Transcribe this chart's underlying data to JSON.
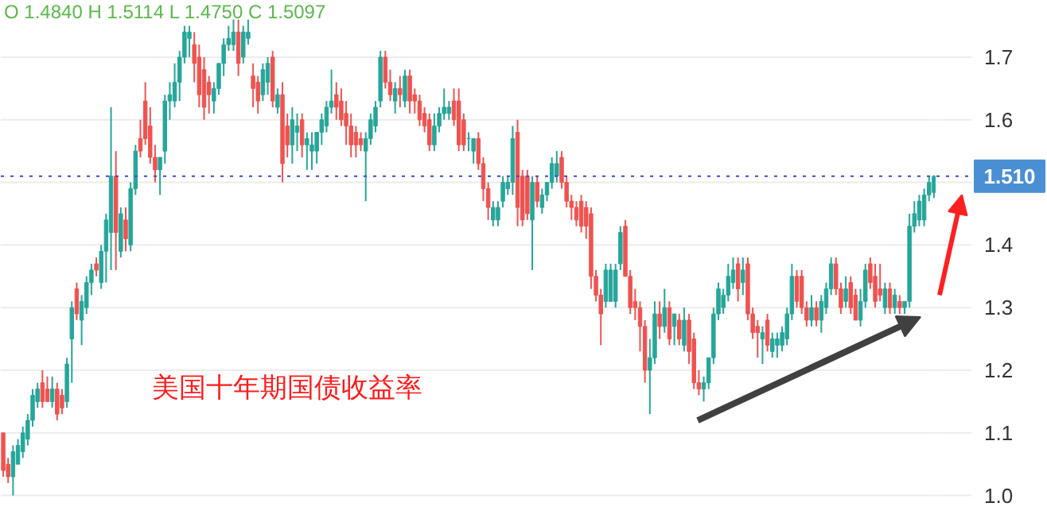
{
  "chart_data": {
    "type": "candlestick",
    "title": "美国十年期国债收益率",
    "annotations": [
      "O 1.4840 H 1.5114 L 1.4750 C 1.5097"
    ],
    "colors": [
      "#ef5350",
      "#ef5350",
      "#26a69a",
      "#26a69a",
      "#26a69a",
      "#26a69a",
      "#26a69a",
      "#26a69a",
      "#ef5350",
      "#ef5350",
      "#26a69a",
      "#ef5350",
      "#ef5350",
      "#26a69a",
      "#26a69a",
      "#ef5350",
      "#26a69a",
      "#26a69a",
      "#26a69a",
      "#ef5350",
      "#26a69a",
      "#26a69a",
      "#26a69a",
      "#ef5350",
      "#26a69a",
      "#ef5350",
      "#26a69a",
      "#26a69a",
      "#ef5350",
      "#ef5350",
      "#ef5350",
      "#ef5350",
      "#26a69a",
      "#26a69a",
      "#26a69a",
      "#26a69a",
      "#26a69a",
      "#26a69a",
      "#26a69a",
      "#ef5350",
      "#ef5350",
      "#ef5350",
      "#ef5350",
      "#26a69a",
      "#26a69a",
      "#26a69a",
      "#26a69a",
      "#26a69a",
      "#ef5350",
      "#26a69a",
      "#26a69a",
      "#ef5350",
      "#ef5350",
      "#26a69a",
      "#26a69a",
      "#ef5350",
      "#26a69a",
      "#ef5350",
      "#ef5350",
      "#26a69a",
      "#26a69a",
      "#ef5350",
      "#26a69a",
      "#26a69a",
      "#26a69a",
      "#26a69a",
      "#26a69a",
      "#26a69a",
      "#ef5350",
      "#ef5350",
      "#ef5350",
      "#ef5350",
      "#ef5350",
      "#ef5350",
      "#26a69a",
      "#26a69a",
      "#26a69a",
      "#26a69a",
      "#ef5350",
      "#ef5350",
      "#26a69a",
      "#ef5350",
      "#26a69a",
      "#ef5350",
      "#ef5350",
      "#ef5350",
      "#ef5350",
      "#ef5350",
      "#26a69a",
      "#26a69a",
      "#26a69a",
      "#26a69a",
      "#ef5350",
      "#ef5350",
      "#ef5350",
      "#26a69a",
      "#26a69a",
      "#ef5350",
      "#ef5350",
      "#ef5350",
      "#26a69a",
      "#26a69a",
      "#26a69a",
      "#26a69a",
      "#26a69a",
      "#ef5350",
      "#ef5350",
      "#ef5350",
      "#26a69a",
      "#ef5350",
      "#26a69a",
      "#26a69a",
      "#26a69a",
      "#26a69a",
      "#ef5350",
      "#ef5350",
      "#ef5350",
      "#ef5350",
      "#ef5350",
      "#ef5350",
      "#ef5350",
      "#ef5350",
      "#ef5350",
      "#26a69a",
      "#26a69a",
      "#26a69a",
      "#26a69a",
      "#ef5350",
      "#ef5350",
      "#ef5350",
      "#ef5350",
      "#ef5350",
      "#26a69a",
      "#26a69a",
      "#ef5350",
      "#26a69a",
      "#ef5350",
      "#26a69a",
      "#ef5350",
      "#26a69a",
      "#ef5350",
      "#ef5350",
      "#ef5350",
      "#26a69a",
      "#26a69a",
      "#26a69a",
      "#26a69a",
      "#26a69a",
      "#26a69a",
      "#26a69a",
      "#ef5350",
      "#26a69a",
      "#ef5350",
      "#ef5350",
      "#ef5350",
      "#26a69a",
      "#ef5350",
      "#26a69a",
      "#26a69a",
      "#26a69a",
      "#26a69a",
      "#26a69a",
      "#ef5350",
      "#ef5350",
      "#ef5350",
      "#26a69a",
      "#ef5350",
      "#26a69a",
      "#26a69a",
      "#26a69a",
      "#ef5350",
      "#ef5350",
      "#26a69a",
      "#ef5350",
      "#ef5350",
      "#26a69a",
      "#26a69a",
      "#ef5350",
      "#ef5350",
      "#ef5350",
      "#26a69a",
      "#ef5350",
      "#26a69a",
      "#ef5350",
      "#26a69a",
      "#26a69a",
      "#26a69a",
      "#26a69a",
      "#26a69a",
      "#26a69a",
      "#26a69a"
    ],
    "ylim": [
      0.95,
      1.79
    ],
    "yticks": [
      {
        "value": 1.0,
        "label": "1.0"
      },
      1.1,
      1.2,
      1.3,
      1.4,
      {
        "value": 1.5,
        "label": null
      },
      1.6,
      1.7
    ],
    "grid": "y",
    "ref_lines": [
      {
        "axis": "y",
        "value": 1.51,
        "label": "1.510",
        "color": "#3f48e0",
        "line_style": "dotted"
      }
    ],
    "categories": [
      null,
      null,
      null,
      null,
      null,
      null,
      null,
      null,
      null,
      null,
      null,
      null,
      null,
      null,
      null,
      null,
      null,
      null,
      null,
      null,
      null,
      null,
      null,
      null,
      null,
      null,
      null,
      null,
      null,
      null,
      null,
      null,
      null,
      null,
      null,
      null,
      null,
      null,
      null,
      null,
      null,
      null,
      null,
      null,
      null,
      null,
      null,
      null,
      null,
      null,
      null,
      null,
      null,
      null,
      null,
      null,
      null,
      null,
      null,
      null,
      null,
      null,
      null,
      null,
      null,
      null,
      null,
      null,
      null,
      null,
      null,
      null,
      null,
      null,
      null,
      null,
      null,
      null,
      null,
      null,
      null,
      null,
      null,
      null,
      null,
      null,
      null,
      null,
      null,
      null,
      null,
      null,
      null,
      null,
      null,
      null,
      null,
      null,
      null,
      null,
      null,
      null,
      null,
      null,
      null,
      null,
      null,
      null,
      null,
      null,
      null,
      null,
      null,
      null,
      null,
      null,
      null,
      null,
      null,
      null,
      null,
      null,
      null,
      null,
      null,
      null,
      null,
      null,
      null,
      null,
      null,
      null,
      null,
      null,
      null,
      null,
      null,
      null,
      null,
      null,
      null,
      null,
      null,
      null,
      null,
      null,
      null,
      null,
      null,
      null,
      null,
      null,
      null,
      null,
      null,
      null,
      null,
      null,
      null,
      null,
      null,
      null,
      null,
      null,
      null,
      null,
      null,
      null,
      null,
      null,
      null,
      null,
      null,
      null,
      null,
      null,
      null,
      null,
      null,
      null,
      null,
      null,
      null,
      null,
      null,
      null,
      null,
      null,
      null,
      null,
      null
    ],
    "ohlc": [
      [
        1.1,
        1.1,
        1.03,
        1.04
      ],
      [
        1.05,
        1.06,
        1.02,
        1.03
      ],
      [
        1.03,
        1.08,
        1.0,
        1.07
      ],
      [
        1.05,
        1.09,
        1.05,
        1.08
      ],
      [
        1.07,
        1.11,
        1.06,
        1.1
      ],
      [
        1.09,
        1.13,
        1.08,
        1.12
      ],
      [
        1.12,
        1.17,
        1.11,
        1.16
      ],
      [
        1.15,
        1.18,
        1.14,
        1.17
      ],
      [
        1.18,
        1.2,
        1.14,
        1.15
      ],
      [
        1.17,
        1.19,
        1.15,
        1.15
      ],
      [
        1.15,
        1.19,
        1.14,
        1.17
      ],
      [
        1.17,
        1.18,
        1.12,
        1.13
      ],
      [
        1.16,
        1.17,
        1.13,
        1.14
      ],
      [
        1.15,
        1.22,
        1.14,
        1.21
      ],
      [
        1.25,
        1.31,
        1.18,
        1.3
      ],
      [
        1.33,
        1.34,
        1.28,
        1.29
      ],
      [
        1.28,
        1.32,
        1.24,
        1.31
      ],
      [
        1.3,
        1.35,
        1.29,
        1.34
      ],
      [
        1.34,
        1.37,
        1.32,
        1.36
      ],
      [
        1.37,
        1.38,
        1.35,
        1.36
      ],
      [
        1.34,
        1.4,
        1.33,
        1.39
      ],
      [
        1.39,
        1.45,
        1.34,
        1.44
      ],
      [
        1.42,
        1.62,
        1.36,
        1.51
      ],
      [
        1.51,
        1.55,
        1.36,
        1.42
      ],
      [
        1.39,
        1.46,
        1.38,
        1.45
      ],
      [
        1.44,
        1.46,
        1.39,
        1.41
      ],
      [
        1.4,
        1.5,
        1.39,
        1.49
      ],
      [
        1.49,
        1.56,
        1.48,
        1.55
      ],
      [
        1.57,
        1.6,
        1.54,
        1.55
      ],
      [
        1.63,
        1.66,
        1.56,
        1.57
      ],
      [
        1.59,
        1.62,
        1.53,
        1.54
      ],
      [
        1.54,
        1.56,
        1.5,
        1.52
      ],
      [
        1.52,
        1.54,
        1.48,
        1.54
      ],
      [
        1.55,
        1.64,
        1.53,
        1.63
      ],
      [
        1.63,
        1.66,
        1.6,
        1.64
      ],
      [
        1.63,
        1.69,
        1.62,
        1.66
      ],
      [
        1.66,
        1.71,
        1.63,
        1.7
      ],
      [
        1.7,
        1.75,
        1.69,
        1.74
      ],
      [
        1.73,
        1.75,
        1.7,
        1.74
      ],
      [
        1.72,
        1.74,
        1.66,
        1.69
      ],
      [
        1.7,
        1.72,
        1.62,
        1.64
      ],
      [
        1.68,
        1.7,
        1.6,
        1.62
      ],
      [
        1.66,
        1.67,
        1.61,
        1.64
      ],
      [
        1.63,
        1.66,
        1.61,
        1.65
      ],
      [
        1.65,
        1.69,
        1.64,
        1.69
      ],
      [
        1.69,
        1.73,
        1.67,
        1.72
      ],
      [
        1.72,
        1.75,
        1.71,
        1.73
      ],
      [
        1.72,
        1.76,
        1.71,
        1.74
      ],
      [
        1.74,
        1.76,
        1.67,
        1.69
      ],
      [
        1.7,
        1.75,
        1.69,
        1.74
      ],
      [
        1.73,
        1.76,
        1.72,
        1.74
      ],
      [
        1.67,
        1.69,
        1.62,
        1.65
      ],
      [
        1.66,
        1.67,
        1.61,
        1.63
      ],
      [
        1.64,
        1.69,
        1.63,
        1.68
      ],
      [
        1.66,
        1.7,
        1.64,
        1.69
      ],
      [
        1.7,
        1.71,
        1.62,
        1.63
      ],
      [
        1.62,
        1.65,
        1.61,
        1.64
      ],
      [
        1.64,
        1.66,
        1.5,
        1.53
      ],
      [
        1.59,
        1.61,
        1.54,
        1.56
      ],
      [
        1.56,
        1.62,
        1.53,
        1.6
      ],
      [
        1.58,
        1.61,
        1.55,
        1.59
      ],
      [
        1.6,
        1.61,
        1.54,
        1.56
      ],
      [
        1.56,
        1.58,
        1.52,
        1.57
      ],
      [
        1.55,
        1.58,
        1.52,
        1.56
      ],
      [
        1.55,
        1.58,
        1.53,
        1.58
      ],
      [
        1.58,
        1.61,
        1.56,
        1.6
      ],
      [
        1.59,
        1.63,
        1.58,
        1.62
      ],
      [
        1.62,
        1.68,
        1.61,
        1.63
      ],
      [
        1.64,
        1.66,
        1.6,
        1.62
      ],
      [
        1.63,
        1.65,
        1.59,
        1.6
      ],
      [
        1.61,
        1.63,
        1.56,
        1.59
      ],
      [
        1.59,
        1.61,
        1.54,
        1.56
      ],
      [
        1.58,
        1.59,
        1.54,
        1.56
      ],
      [
        1.57,
        1.58,
        1.55,
        1.56
      ],
      [
        1.55,
        1.58,
        1.47,
        1.57
      ],
      [
        1.57,
        1.61,
        1.56,
        1.6
      ],
      [
        1.59,
        1.63,
        1.58,
        1.62
      ],
      [
        1.63,
        1.71,
        1.62,
        1.7
      ],
      [
        1.7,
        1.71,
        1.65,
        1.66
      ],
      [
        1.66,
        1.68,
        1.63,
        1.64
      ],
      [
        1.63,
        1.66,
        1.61,
        1.65
      ],
      [
        1.65,
        1.67,
        1.62,
        1.64
      ],
      [
        1.63,
        1.68,
        1.62,
        1.67
      ],
      [
        1.67,
        1.68,
        1.61,
        1.63
      ],
      [
        1.64,
        1.65,
        1.61,
        1.63
      ],
      [
        1.63,
        1.64,
        1.59,
        1.6
      ],
      [
        1.61,
        1.62,
        1.58,
        1.59
      ],
      [
        1.6,
        1.61,
        1.55,
        1.56
      ],
      [
        1.56,
        1.61,
        1.55,
        1.59
      ],
      [
        1.59,
        1.62,
        1.58,
        1.61
      ],
      [
        1.61,
        1.65,
        1.6,
        1.62
      ],
      [
        1.61,
        1.63,
        1.6,
        1.62
      ],
      [
        1.63,
        1.65,
        1.59,
        1.6
      ],
      [
        1.63,
        1.65,
        1.55,
        1.56
      ],
      [
        1.6,
        1.61,
        1.55,
        1.56
      ],
      [
        1.57,
        1.58,
        1.55,
        1.57
      ],
      [
        1.55,
        1.57,
        1.53,
        1.57
      ],
      [
        1.57,
        1.58,
        1.52,
        1.53
      ],
      [
        1.53,
        1.54,
        1.47,
        1.49
      ],
      [
        1.49,
        1.5,
        1.44,
        1.46
      ],
      [
        1.44,
        1.47,
        1.43,
        1.46
      ],
      [
        1.44,
        1.47,
        1.43,
        1.46
      ],
      [
        1.47,
        1.51,
        1.46,
        1.5
      ],
      [
        1.49,
        1.51,
        1.48,
        1.5
      ],
      [
        1.5,
        1.59,
        1.48,
        1.57
      ],
      [
        1.58,
        1.6,
        1.43,
        1.46
      ],
      [
        1.51,
        1.52,
        1.43,
        1.44
      ],
      [
        1.51,
        1.52,
        1.44,
        1.45
      ],
      [
        1.44,
        1.51,
        1.36,
        1.5
      ],
      [
        1.5,
        1.51,
        1.46,
        1.47
      ],
      [
        1.46,
        1.49,
        1.45,
        1.48
      ],
      [
        1.48,
        1.5,
        1.47,
        1.5
      ],
      [
        1.5,
        1.54,
        1.49,
        1.53
      ],
      [
        1.51,
        1.55,
        1.5,
        1.53
      ],
      [
        1.54,
        1.55,
        1.49,
        1.5
      ],
      [
        1.5,
        1.51,
        1.46,
        1.47
      ],
      [
        1.47,
        1.48,
        1.44,
        1.46
      ],
      [
        1.46,
        1.47,
        1.43,
        1.44
      ],
      [
        1.47,
        1.48,
        1.42,
        1.43
      ],
      [
        1.46,
        1.47,
        1.41,
        1.43
      ],
      [
        1.45,
        1.46,
        1.33,
        1.35
      ],
      [
        1.35,
        1.36,
        1.31,
        1.32
      ],
      [
        1.32,
        1.33,
        1.24,
        1.29
      ],
      [
        1.31,
        1.37,
        1.3,
        1.36
      ],
      [
        1.31,
        1.37,
        1.31,
        1.36
      ],
      [
        1.31,
        1.37,
        1.3,
        1.36
      ],
      [
        1.37,
        1.43,
        1.36,
        1.42
      ],
      [
        1.43,
        1.44,
        1.35,
        1.35
      ],
      [
        1.35,
        1.36,
        1.29,
        1.3
      ],
      [
        1.31,
        1.33,
        1.28,
        1.3
      ],
      [
        1.3,
        1.31,
        1.23,
        1.27
      ],
      [
        1.27,
        1.28,
        1.18,
        1.2
      ],
      [
        1.2,
        1.25,
        1.13,
        1.22
      ],
      [
        1.22,
        1.31,
        1.21,
        1.29
      ],
      [
        1.29,
        1.31,
        1.25,
        1.27
      ],
      [
        1.27,
        1.33,
        1.26,
        1.3
      ],
      [
        1.3,
        1.31,
        1.24,
        1.25
      ],
      [
        1.27,
        1.29,
        1.24,
        1.29
      ],
      [
        1.28,
        1.29,
        1.24,
        1.25
      ],
      [
        1.24,
        1.3,
        1.23,
        1.28
      ],
      [
        1.28,
        1.29,
        1.21,
        1.23
      ],
      [
        1.25,
        1.26,
        1.17,
        1.18
      ],
      [
        1.18,
        1.2,
        1.16,
        1.17
      ],
      [
        1.17,
        1.19,
        1.15,
        1.18
      ],
      [
        1.18,
        1.22,
        1.17,
        1.22
      ],
      [
        1.22,
        1.3,
        1.21,
        1.29
      ],
      [
        1.29,
        1.34,
        1.28,
        1.33
      ],
      [
        1.3,
        1.33,
        1.29,
        1.32
      ],
      [
        1.32,
        1.37,
        1.31,
        1.35
      ],
      [
        1.34,
        1.38,
        1.33,
        1.36
      ],
      [
        1.37,
        1.38,
        1.31,
        1.33
      ],
      [
        1.34,
        1.38,
        1.32,
        1.36
      ],
      [
        1.37,
        1.38,
        1.28,
        1.29
      ],
      [
        1.29,
        1.3,
        1.25,
        1.26
      ],
      [
        1.27,
        1.28,
        1.22,
        1.26
      ],
      [
        1.25,
        1.27,
        1.21,
        1.26
      ],
      [
        1.28,
        1.29,
        1.23,
        1.24
      ],
      [
        1.23,
        1.26,
        1.22,
        1.25
      ],
      [
        1.24,
        1.26,
        1.22,
        1.25
      ],
      [
        1.24,
        1.27,
        1.23,
        1.26
      ],
      [
        1.25,
        1.3,
        1.24,
        1.29
      ],
      [
        1.29,
        1.37,
        1.28,
        1.35
      ],
      [
        1.35,
        1.36,
        1.3,
        1.31
      ],
      [
        1.35,
        1.36,
        1.29,
        1.3
      ],
      [
        1.3,
        1.31,
        1.27,
        1.28
      ],
      [
        1.28,
        1.32,
        1.27,
        1.3
      ],
      [
        1.3,
        1.31,
        1.27,
        1.28
      ],
      [
        1.28,
        1.32,
        1.26,
        1.31
      ],
      [
        1.3,
        1.34,
        1.29,
        1.33
      ],
      [
        1.33,
        1.38,
        1.32,
        1.37
      ],
      [
        1.37,
        1.38,
        1.32,
        1.33
      ],
      [
        1.33,
        1.34,
        1.29,
        1.3
      ],
      [
        1.31,
        1.35,
        1.3,
        1.33
      ],
      [
        1.34,
        1.35,
        1.29,
        1.3
      ],
      [
        1.32,
        1.33,
        1.28,
        1.28
      ],
      [
        1.28,
        1.33,
        1.27,
        1.31
      ],
      [
        1.31,
        1.37,
        1.3,
        1.36
      ],
      [
        1.37,
        1.38,
        1.33,
        1.34
      ],
      [
        1.35,
        1.37,
        1.3,
        1.31
      ],
      [
        1.33,
        1.37,
        1.31,
        1.32
      ],
      [
        1.3,
        1.34,
        1.29,
        1.33
      ],
      [
        1.33,
        1.34,
        1.29,
        1.3
      ],
      [
        1.3,
        1.33,
        1.29,
        1.32
      ],
      [
        1.31,
        1.32,
        1.29,
        1.3
      ],
      [
        1.3,
        1.31,
        1.29,
        1.31
      ],
      [
        1.31,
        1.45,
        1.3,
        1.43
      ],
      [
        1.43,
        1.47,
        1.42,
        1.45
      ],
      [
        1.44,
        1.48,
        1.43,
        1.47
      ],
      [
        1.44,
        1.49,
        1.43,
        1.48
      ],
      [
        1.48,
        1.51,
        1.47,
        1.5
      ],
      [
        1.484,
        1.5114,
        1.475,
        1.5097
      ]
    ]
  }
}
